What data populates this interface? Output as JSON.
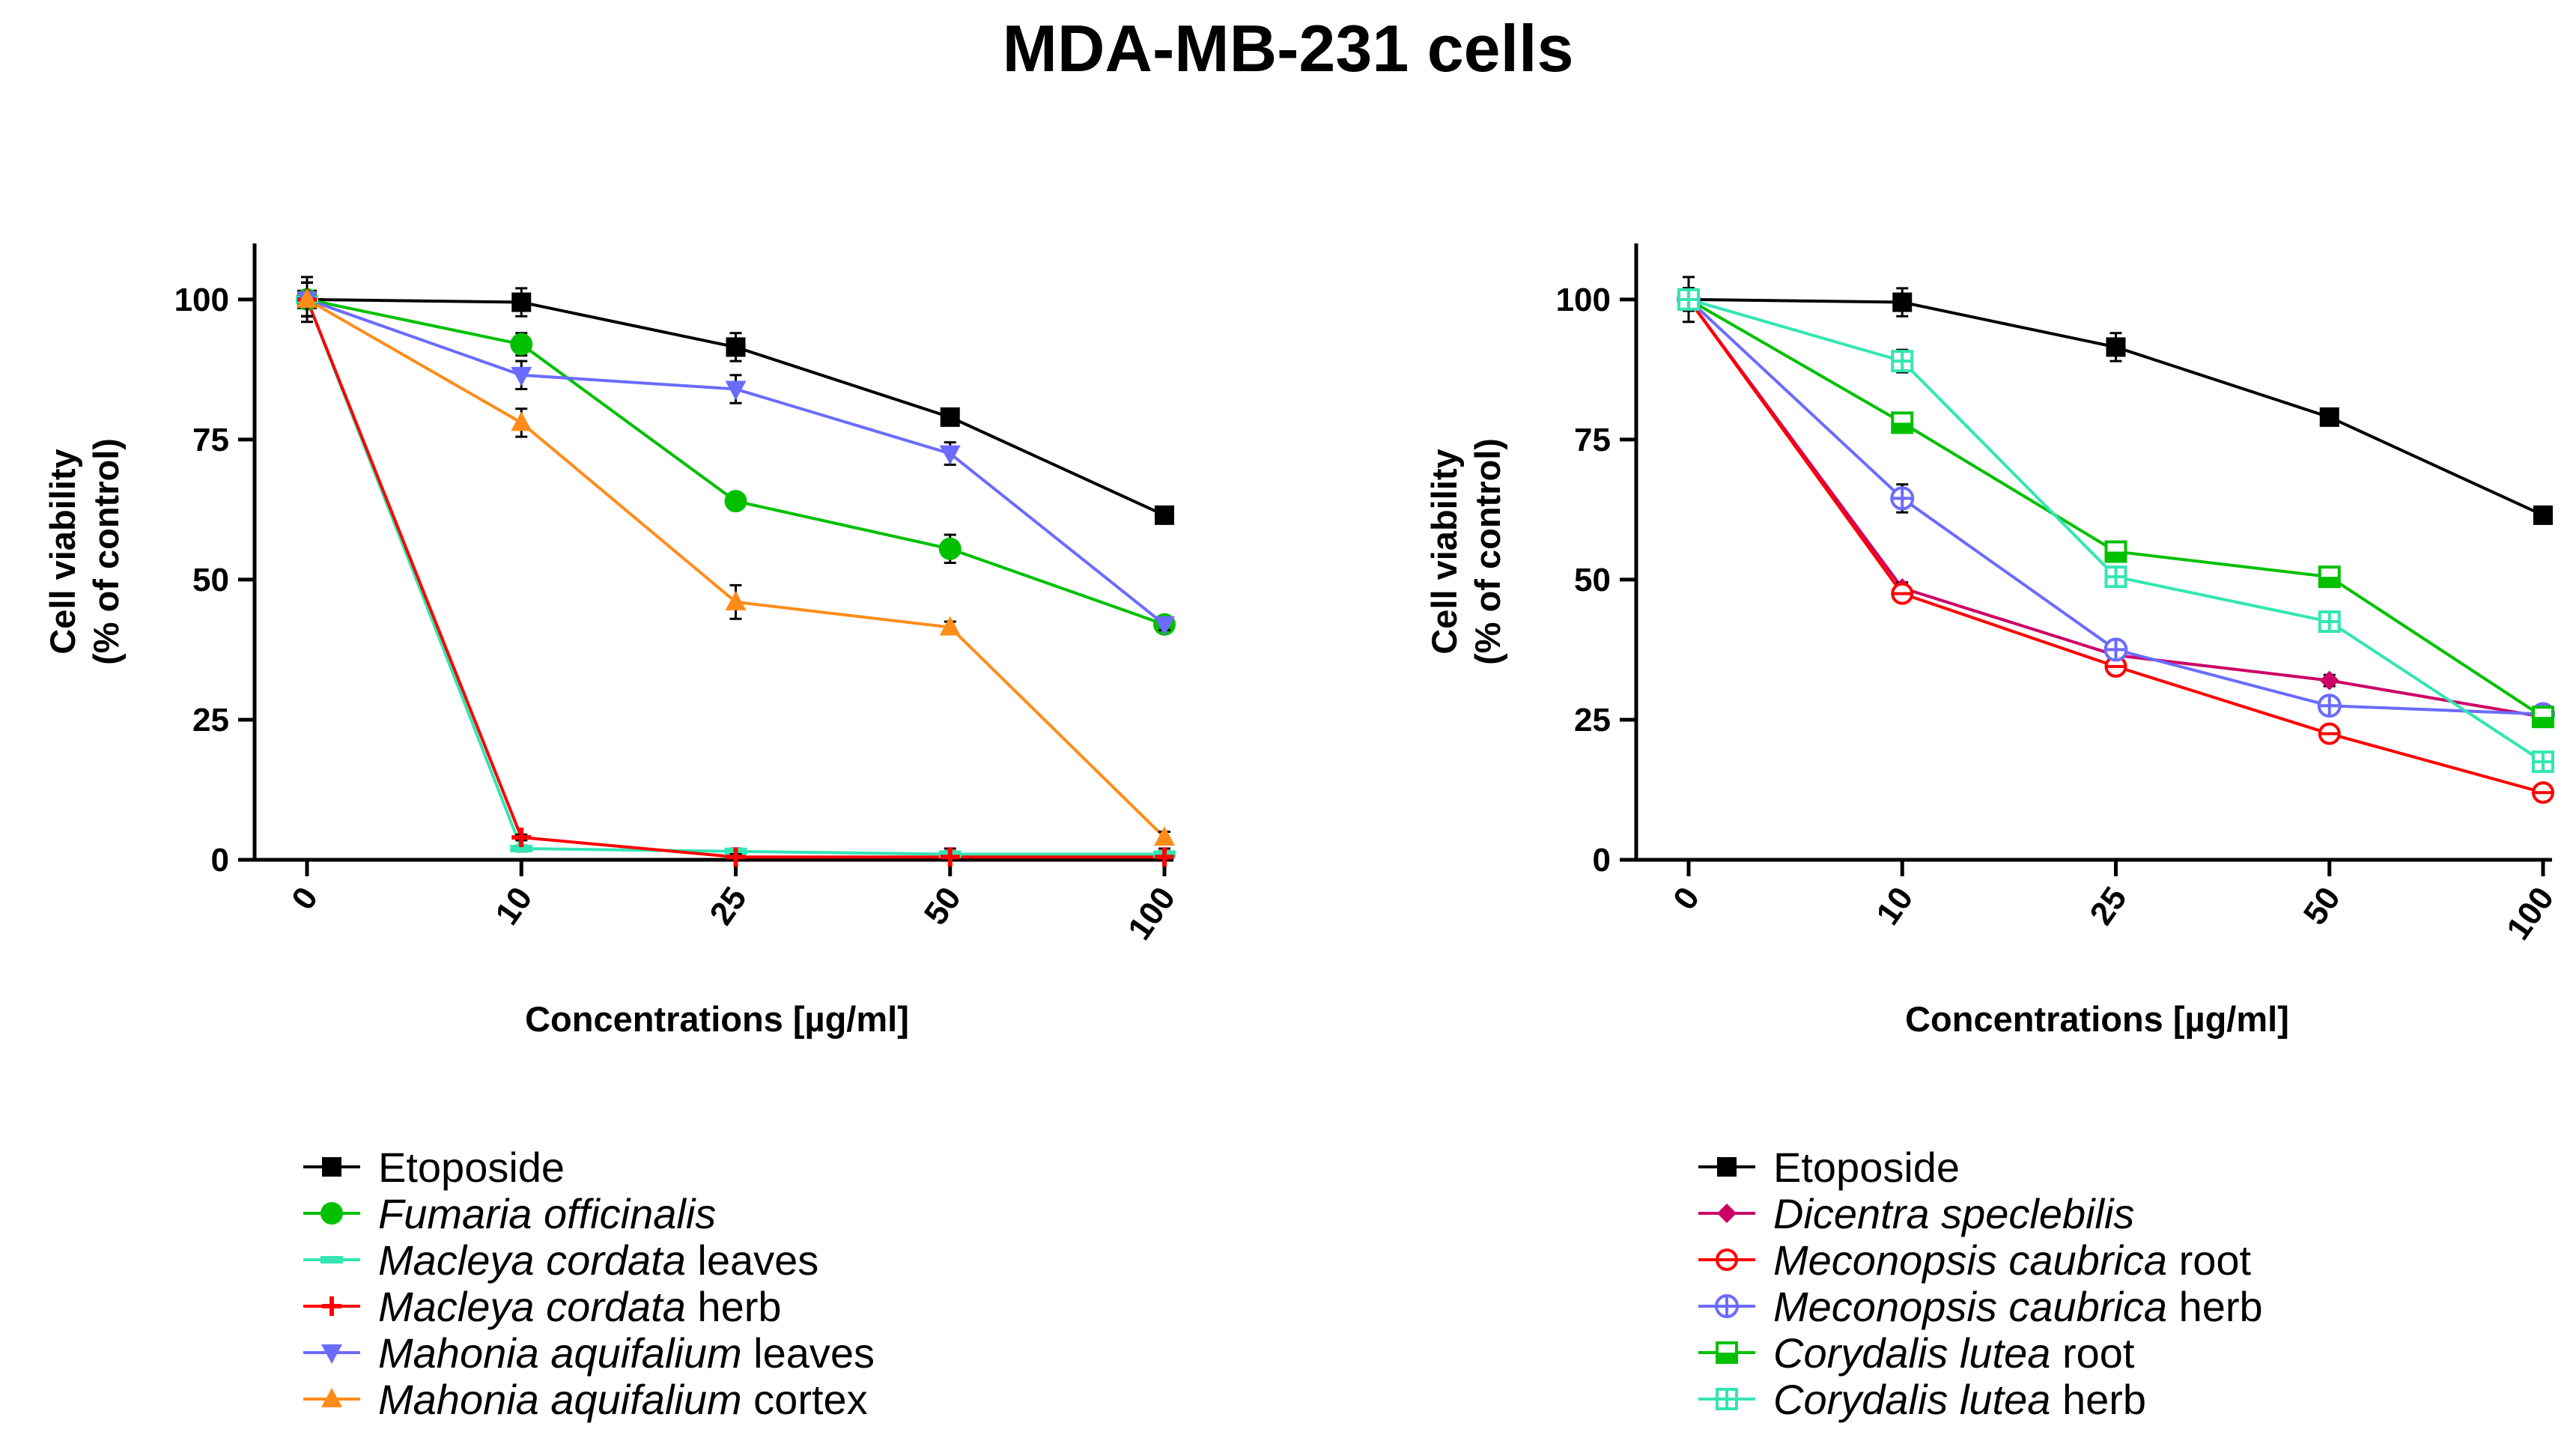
{
  "title": "MDA-MB-231 cells",
  "chart_data": [
    {
      "type": "line",
      "panel": "left",
      "categories": [
        "0",
        "10",
        "25",
        "50",
        "100"
      ],
      "xlabel": "Concentrations [µg/ml]",
      "ylabel": [
        "Cell viability",
        "(% of control)"
      ],
      "ylim": [
        0,
        110
      ],
      "yticks": [
        "0",
        "25",
        "50",
        "75",
        "100"
      ],
      "series": [
        {
          "name": "Etoposide",
          "legend": [
            {
              "t": "Etoposide",
              "i": false
            }
          ],
          "color": "#000000",
          "marker": "square",
          "values": [
            100,
            99.5,
            91.5,
            79,
            61.5
          ],
          "err": [
            4,
            2.5,
            2.5,
            1,
            1
          ]
        },
        {
          "name": "Fumaria officinalis",
          "legend": [
            {
              "t": "Fumaria officinalis",
              "i": true
            }
          ],
          "color": "#00c000",
          "marker": "circle",
          "values": [
            100,
            92,
            64,
            55.5,
            42
          ],
          "err": [
            3,
            2,
            1,
            2.5,
            1
          ]
        },
        {
          "name": "Macleya cordata leaves",
          "legend": [
            {
              "t": "Macleya cordata",
              "i": true
            },
            {
              "t": " leaves",
              "i": false
            }
          ],
          "color": "#33e6b3",
          "marker": "dash",
          "values": [
            100,
            2,
            1.5,
            1,
            1
          ],
          "err": [
            3,
            0.5,
            0.5,
            0.5,
            0.5
          ]
        },
        {
          "name": "Macleya cordata herb",
          "legend": [
            {
              "t": "Macleya cordata",
              "i": true
            },
            {
              "t": " herb",
              "i": false
            }
          ],
          "color": "#ff0000",
          "marker": "plus",
          "values": [
            100,
            4,
            0.5,
            0.5,
            0.5
          ],
          "err": [
            3,
            0.5,
            0.5,
            1.5,
            1.5
          ]
        },
        {
          "name": "Mahonia aquifalium leaves",
          "legend": [
            {
              "t": "Mahonia aquifalium",
              "i": true
            },
            {
              "t": " leaves",
              "i": false
            }
          ],
          "color": "#6b6bff",
          "marker": "triangle-down",
          "values": [
            100,
            86.5,
            84,
            72.5,
            42
          ],
          "err": [
            3,
            2.5,
            2.5,
            2,
            1
          ]
        },
        {
          "name": "Mahonia aquifalium cortex",
          "legend": [
            {
              "t": "Mahonia aquifalium",
              "i": true
            },
            {
              "t": " cortex",
              "i": false
            }
          ],
          "color": "#ff8c1a",
          "marker": "triangle-up",
          "values": [
            100,
            78,
            46,
            41.5,
            4
          ],
          "err": [
            3,
            2.5,
            3,
            1,
            1
          ]
        }
      ]
    },
    {
      "type": "line",
      "panel": "right",
      "categories": [
        "0",
        "10",
        "25",
        "50",
        "100"
      ],
      "xlabel": "Concentrations [µg/ml]",
      "ylabel": [
        "Cell viability",
        "(% of control)"
      ],
      "ylim": [
        0,
        110
      ],
      "yticks": [
        "0",
        "25",
        "50",
        "75",
        "100"
      ],
      "series": [
        {
          "name": "Etoposide",
          "legend": [
            {
              "t": "Etoposide",
              "i": false
            }
          ],
          "color": "#000000",
          "marker": "square",
          "values": [
            100,
            99.5,
            91.5,
            79,
            61.5
          ],
          "err": [
            4,
            2.5,
            2.5,
            1,
            1
          ]
        },
        {
          "name": "Dicentra speclebilis",
          "legend": [
            {
              "t": "Dicentra speclebilis",
              "i": true
            }
          ],
          "color": "#cc0066",
          "marker": "diamond",
          "values": [
            100,
            48.5,
            36.5,
            32,
            25.5
          ],
          "err": [
            2,
            1,
            1,
            1,
            1
          ]
        },
        {
          "name": "Meconopsis caubrica root",
          "legend": [
            {
              "t": "Meconopsis caubrica",
              "i": true
            },
            {
              "t": " root",
              "i": false
            }
          ],
          "color": "#ff0000",
          "marker": "circle-open",
          "values": [
            100,
            47.5,
            34.5,
            22.5,
            12
          ],
          "err": [
            2,
            1,
            1,
            1,
            1
          ]
        },
        {
          "name": "Meconopsis caubrica herb",
          "legend": [
            {
              "t": "Meconopsis caubrica",
              "i": true
            },
            {
              "t": " herb",
              "i": false
            }
          ],
          "color": "#6b6bff",
          "marker": "circle-cross",
          "values": [
            100,
            64.5,
            37.5,
            27.5,
            26
          ],
          "err": [
            2,
            2.5,
            1.5,
            1,
            1
          ]
        },
        {
          "name": "Corydalis lutea root",
          "legend": [
            {
              "t": "Corydalis lutea",
              "i": true
            },
            {
              "t": " root",
              "i": false
            }
          ],
          "color": "#00c000",
          "marker": "square-half",
          "values": [
            100,
            78,
            55,
            50.5,
            25.5
          ],
          "err": [
            2,
            1.5,
            1.5,
            1,
            1
          ]
        },
        {
          "name": "Corydalis lutea herb",
          "legend": [
            {
              "t": "Corydalis lutea",
              "i": true
            },
            {
              "t": " herb",
              "i": false
            }
          ],
          "color": "#33e6b3",
          "marker": "square-cross",
          "values": [
            100,
            89,
            50.5,
            42.5,
            17.5
          ],
          "err": [
            2,
            2,
            1.5,
            1.5,
            1
          ]
        }
      ]
    }
  ]
}
